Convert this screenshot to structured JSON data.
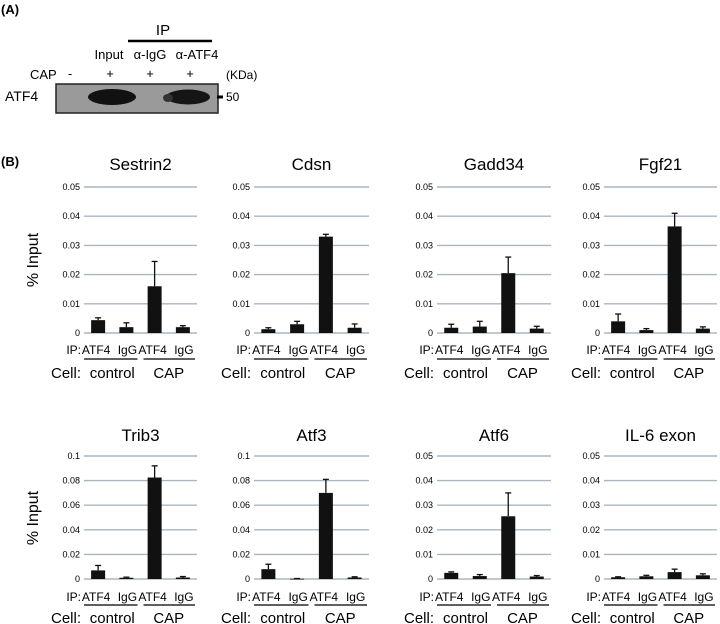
{
  "panel_a": {
    "label": "(A)",
    "ip_header": "IP",
    "lanes": [
      "Input",
      "α-IgG",
      "α-ATF4"
    ],
    "cap_label": "CAP",
    "cap_signs": [
      "-",
      "+",
      "+",
      "+"
    ],
    "kda_label": "(KDa)",
    "blot_label": "ATF4",
    "marker": "50"
  },
  "panel_b": {
    "label": "(B)",
    "ylabel": "% Input",
    "ip_prefix": "IP:",
    "cell_prefix": "Cell:",
    "ip_labels": [
      "ATF4",
      "IgG",
      "ATF4",
      "IgG"
    ],
    "cell_labels": [
      "control",
      "CAP"
    ]
  },
  "chart_data": [
    {
      "type": "bar",
      "title": "Sestrin2",
      "categories": [
        "control ATF4",
        "control IgG",
        "CAP ATF4",
        "CAP IgG"
      ],
      "values": [
        0.0044,
        0.002,
        0.016,
        0.002
      ],
      "errors": [
        0.0008,
        0.0015,
        0.0085,
        0.0005
      ],
      "ylim": [
        0,
        0.05
      ],
      "yticks": [
        "0",
        "0.01",
        "0.02",
        "0.03",
        "0.04",
        "0.05"
      ],
      "ylabel": "% Input"
    },
    {
      "type": "bar",
      "title": "Cdsn",
      "categories": [
        "control ATF4",
        "control IgG",
        "CAP ATF4",
        "CAP IgG"
      ],
      "values": [
        0.0013,
        0.003,
        0.033,
        0.0018
      ],
      "errors": [
        0.0005,
        0.001,
        0.0008,
        0.0013
      ],
      "ylim": [
        0,
        0.05
      ],
      "yticks": [
        "0",
        "0.01",
        "0.02",
        "0.03",
        "0.04",
        "0.05"
      ],
      "ylabel": ""
    },
    {
      "type": "bar",
      "title": "Gadd34",
      "categories": [
        "control ATF4",
        "control IgG",
        "CAP ATF4",
        "CAP IgG"
      ],
      "values": [
        0.0018,
        0.0022,
        0.0205,
        0.0015
      ],
      "errors": [
        0.0012,
        0.0018,
        0.0055,
        0.0008
      ],
      "ylim": [
        0,
        0.05
      ],
      "yticks": [
        "0",
        "0.01",
        "0.02",
        "0.03",
        "0.04",
        "0.05"
      ],
      "ylabel": ""
    },
    {
      "type": "bar",
      "title": "Fgf21",
      "categories": [
        "control ATF4",
        "control IgG",
        "CAP ATF4",
        "CAP IgG"
      ],
      "values": [
        0.004,
        0.001,
        0.0365,
        0.0015
      ],
      "errors": [
        0.0025,
        0.0005,
        0.0045,
        0.0006
      ],
      "ylim": [
        0,
        0.05
      ],
      "yticks": [
        "0",
        "0.01",
        "0.02",
        "0.03",
        "0.04",
        "0.05"
      ],
      "ylabel": ""
    },
    {
      "type": "bar",
      "title": "Trib3",
      "categories": [
        "control ATF4",
        "control IgG",
        "CAP ATF4",
        "CAP IgG"
      ],
      "values": [
        0.007,
        0.001,
        0.0825,
        0.0012
      ],
      "errors": [
        0.004,
        0.0005,
        0.0095,
        0.0008
      ],
      "ylim": [
        0,
        0.1
      ],
      "yticks": [
        "0",
        "0.02",
        "0.04",
        "0.06",
        "0.08",
        "0.1"
      ],
      "ylabel": "% Input"
    },
    {
      "type": "bar",
      "title": "Atf3",
      "categories": [
        "control ATF4",
        "control IgG",
        "CAP ATF4",
        "CAP IgG"
      ],
      "values": [
        0.008,
        0.0002,
        0.07,
        0.0012
      ],
      "errors": [
        0.004,
        0.0002,
        0.011,
        0.0006
      ],
      "ylim": [
        0,
        0.1
      ],
      "yticks": [
        "0",
        "0.02",
        "0.04",
        "0.06",
        "0.08",
        "0.1"
      ],
      "ylabel": ""
    },
    {
      "type": "bar",
      "title": "Atf6",
      "categories": [
        "control ATF4",
        "control IgG",
        "CAP ATF4",
        "CAP IgG"
      ],
      "values": [
        0.0025,
        0.0012,
        0.0255,
        0.001
      ],
      "errors": [
        0.0004,
        0.0006,
        0.0095,
        0.0004
      ],
      "ylim": [
        0,
        0.05
      ],
      "yticks": [
        "0",
        "0.01",
        "0.02",
        "0.03",
        "0.04",
        "0.05"
      ],
      "ylabel": ""
    },
    {
      "type": "bar",
      "title": "IL-6 exon",
      "categories": [
        "control ATF4",
        "control IgG",
        "CAP ATF4",
        "CAP IgG"
      ],
      "values": [
        0.0007,
        0.0011,
        0.0028,
        0.0015
      ],
      "errors": [
        0.0002,
        0.0004,
        0.0012,
        0.0006
      ],
      "ylim": [
        0,
        0.05
      ],
      "yticks": [
        "0",
        "0.01",
        "0.02",
        "0.03",
        "0.04",
        "0.05"
      ],
      "ylabel": ""
    }
  ]
}
